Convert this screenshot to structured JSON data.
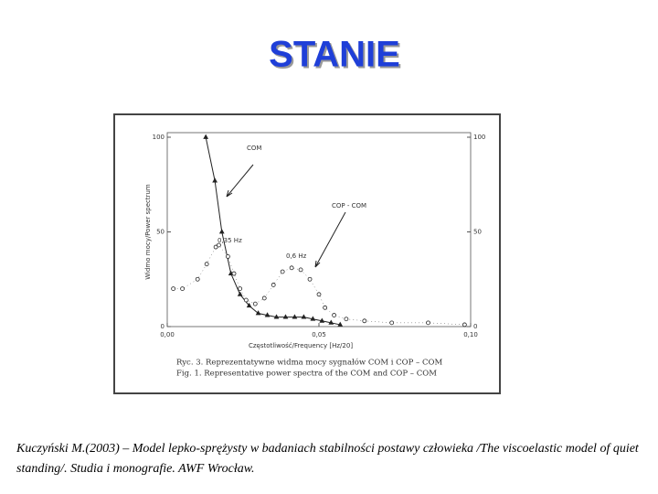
{
  "title": "STANIE",
  "caption": "Kuczyński M.(2003) – Model lepko-sprężysty w badaniach stabilności postawy człowieka /The viscoelastic model of quiet standing/. Studia i monografie. AWF Wrocław.",
  "chart_data": {
    "type": "line",
    "ylabel": "Widmo mocy/Power spectrum",
    "xlabel": "Częstotliwość/Frequency [Hz/20]",
    "figure_caption": [
      "Ryc. 3. Reprezentatywne widma mocy sygnałów COM i COP – COM",
      "Fig. 1. Representative power spectra of the COM and COP – COM"
    ],
    "annotations": [
      "COM",
      "COP - COM",
      "0,35 Hz",
      "0,6 Hz"
    ],
    "xlim": [
      0,
      0.1
    ],
    "xticks": [
      {
        "value": 0,
        "label": "0,00"
      },
      {
        "value": 0.05,
        "label": "0,05"
      },
      {
        "value": 0.1,
        "label": "0,10"
      }
    ],
    "ylim": [
      0,
      100
    ],
    "yticks": [
      0,
      50,
      100
    ],
    "y2lim": [
      0,
      100
    ],
    "y2ticks": [
      0,
      50,
      100
    ],
    "color": "#222222",
    "series": [
      {
        "name": "COM",
        "marker": "triangle",
        "x": [
          0.0127,
          0.0157,
          0.018,
          0.021,
          0.024,
          0.027,
          0.03,
          0.033,
          0.036,
          0.039,
          0.042,
          0.045,
          0.048,
          0.051,
          0.054,
          0.057
        ],
        "values": [
          100,
          77,
          50,
          28,
          17,
          11,
          7,
          6,
          5,
          5,
          5,
          5,
          4,
          3,
          2,
          1
        ]
      },
      {
        "name": "COP - COM",
        "marker": "circle",
        "x": [
          0.002,
          0.005,
          0.01,
          0.013,
          0.016,
          0.017,
          0.02,
          0.022,
          0.024,
          0.026,
          0.029,
          0.032,
          0.035,
          0.038,
          0.041,
          0.044,
          0.047,
          0.05,
          0.052,
          0.055,
          0.059,
          0.065,
          0.074,
          0.086,
          0.098
        ],
        "values": [
          20,
          20,
          25,
          33,
          42,
          43,
          37,
          28,
          20,
          14,
          12,
          15,
          22,
          29,
          31,
          30,
          25,
          17,
          10,
          6,
          4,
          3,
          2,
          2,
          1
        ]
      }
    ]
  }
}
